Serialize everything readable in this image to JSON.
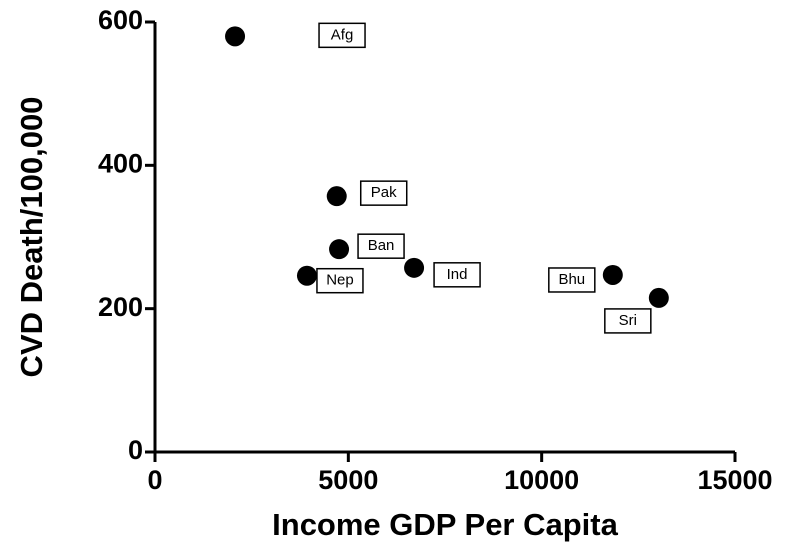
{
  "chart_data": {
    "type": "scatter",
    "x_label": "Income GDP Per Capita",
    "y_label": "CVD Death/100,000",
    "x": [
      2070,
      4700,
      4760,
      3930,
      6700,
      11840,
      13030
    ],
    "values": [
      580,
      357,
      283,
      246,
      257,
      247,
      215
    ],
    "labels": [
      "Afg",
      "Pak",
      "Ban",
      "Nep",
      "Ind",
      "Bhu",
      "Sri"
    ],
    "color": "#000000",
    "xlim": [
      0,
      15000
    ],
    "xticks": [
      0,
      5000,
      10000,
      15000
    ],
    "ylim": [
      0,
      600
    ],
    "yticks": [
      0,
      200,
      400,
      600
    ],
    "grid": false
  }
}
